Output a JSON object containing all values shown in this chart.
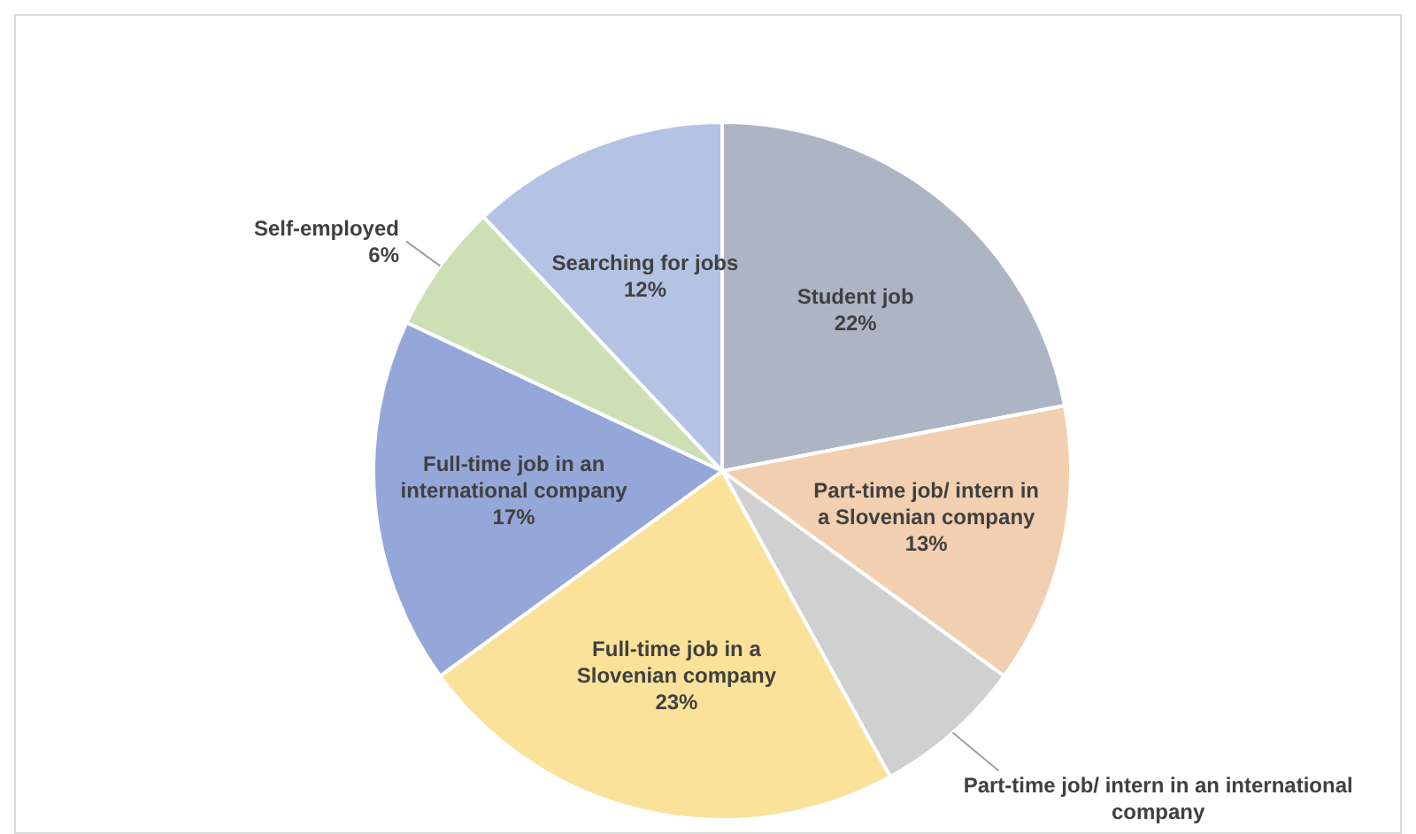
{
  "chart_data": {
    "type": "pie",
    "categories": [
      "Student job",
      "Part-time job/ intern in a Slovenian company",
      "Part-time job/ intern in an international company",
      "Full-time job in a Slovenian company",
      "Full-time job in an international company",
      "Self-employed",
      "Searching for jobs"
    ],
    "values": [
      22,
      13,
      7,
      23,
      17,
      6,
      12
    ],
    "value_labels": [
      "22%",
      "13%",
      null,
      "23%",
      "17%",
      "6%",
      "12%"
    ],
    "colors": [
      "#adb5c5",
      "#f2cfb0",
      "#d0d0d0",
      "#fae29a",
      "#94a7d8",
      "#cde0b5",
      "#b4c3e3"
    ],
    "legend": false
  }
}
